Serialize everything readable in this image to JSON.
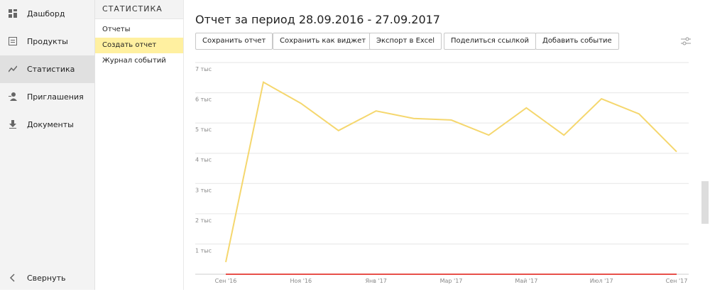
{
  "sidebar": {
    "items": [
      "Дашборд",
      "Продукты",
      "Статистика",
      "Приглашения",
      "Документы"
    ],
    "collapse": "Свернуть"
  },
  "subnav": {
    "title": "СТАТИСТИКА",
    "items": [
      "Отчеты",
      "Создать отчет",
      "Журнал событий"
    ]
  },
  "header": {
    "title": "Отчет за период 28.09.2016 - 27.09.2017"
  },
  "buttons": [
    "Сохранить отчет",
    "Сохранить как виджет",
    "Экспорт в Excel",
    "Поделиться ссылкой",
    "Добавить событие"
  ],
  "chart_data": {
    "type": "line",
    "categories": [
      "Сен '16",
      null,
      "Ноя '16",
      null,
      "Янв '17",
      null,
      "Мар '17",
      null,
      "Май '17",
      null,
      "Июл '17",
      null,
      "Сен '17"
    ],
    "series": [
      {
        "color": "#f5d76e",
        "values": [
          400,
          6350,
          5650,
          4750,
          5400,
          5150,
          5100,
          4600,
          5500,
          4600,
          5800,
          5300,
          4050
        ]
      },
      {
        "color": "#e8504a",
        "values": [
          0,
          0,
          0,
          0,
          0,
          0,
          0,
          0,
          0,
          0,
          0,
          0,
          0
        ]
      }
    ],
    "ylim": [
      0,
      7000
    ],
    "yticks": [
      {
        "value": 1000,
        "label": "1 тыс"
      },
      {
        "value": 2000,
        "label": "2 тыс"
      },
      {
        "value": 3000,
        "label": "3 тыс"
      },
      {
        "value": 4000,
        "label": "4 тыс"
      },
      {
        "value": 5000,
        "label": "5 тыс"
      },
      {
        "value": 6000,
        "label": "6 тыс"
      },
      {
        "value": 7000,
        "label": "7 тыс"
      }
    ],
    "grid": true
  }
}
